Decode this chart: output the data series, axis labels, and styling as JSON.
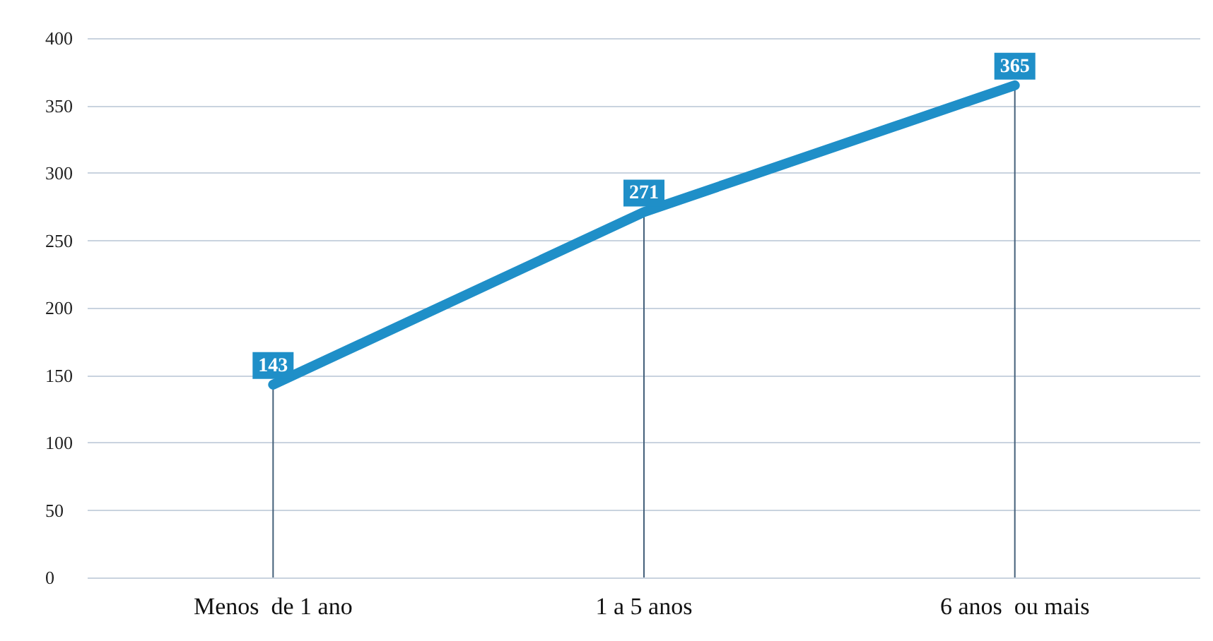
{
  "chart_data": {
    "type": "line",
    "categories": [
      "Menos  de 1 ano",
      "1 a 5 anos",
      "6 anos  ou mais"
    ],
    "series": [
      {
        "type": "bar",
        "color": "#44607a",
        "values": [
          143,
          271,
          365
        ]
      },
      {
        "color": "#1f8fc8",
        "values": [
          143,
          271,
          365
        ],
        "value_labels": [
          "143",
          "271",
          "365"
        ]
      }
    ],
    "ylim": [
      0,
      400
    ],
    "yticks": [
      0,
      50,
      100,
      150,
      200,
      250,
      300,
      350,
      400
    ],
    "grid": "y",
    "marker": "none",
    "line_style": "solid"
  }
}
